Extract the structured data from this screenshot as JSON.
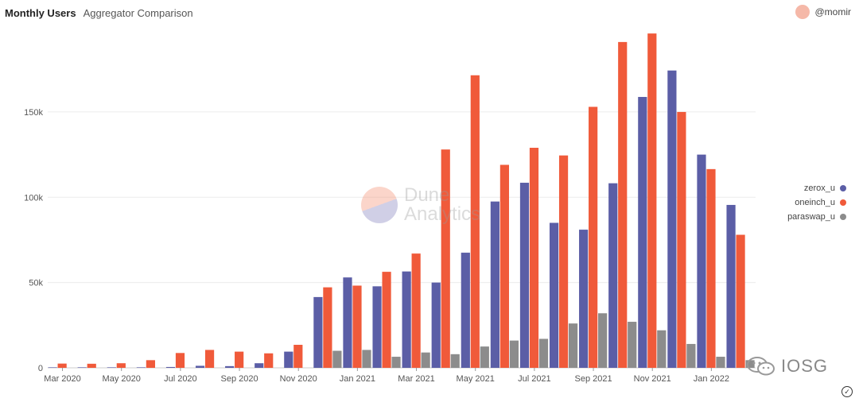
{
  "header": {
    "title": "Monthly Users",
    "subtitle": "Aggregator Comparison"
  },
  "user": {
    "name": "@momir"
  },
  "watermark": {
    "line1": "Dune",
    "line2": "Analytics"
  },
  "brand": {
    "name": "IOSG"
  },
  "colors": {
    "zerox_u": "#5b5ea6",
    "oneinch_u": "#f05a3a",
    "paraswap_u": "#8c8c8c"
  },
  "chart_data": {
    "type": "bar",
    "categories": [
      "Mar 2020",
      "Apr 2020",
      "May 2020",
      "Jun 2020",
      "Jul 2020",
      "Aug 2020",
      "Sep 2020",
      "Oct 2020",
      "Nov 2020",
      "Dec 2020",
      "Jan 2021",
      "Feb 2021",
      "Mar 2021",
      "Apr 2021",
      "May 2021",
      "Jun 2021",
      "Jul 2021",
      "Aug 2021",
      "Sep 2021",
      "Oct 2021",
      "Nov 2021",
      "Dec 2021",
      "Jan 2022",
      "Feb 2022"
    ],
    "tick_labels": [
      "Mar 2020",
      "May 2020",
      "Jul 2020",
      "Sep 2020",
      "Nov 2020",
      "Jan 2021",
      "Mar 2021",
      "May 2021",
      "Jul 2021",
      "Sep 2021",
      "Nov 2021",
      "Jan 2022"
    ],
    "series": [
      {
        "name": "zerox_u",
        "values": [
          300,
          300,
          300,
          300,
          500,
          1200,
          1000,
          2700,
          9500,
          41500,
          53000,
          47800,
          56500,
          50000,
          67500,
          97500,
          108500,
          85000,
          81000,
          108200,
          158800,
          174300,
          125000,
          95500
        ]
      },
      {
        "name": "oneinch_u",
        "values": [
          2500,
          2400,
          2700,
          4500,
          8700,
          10500,
          9500,
          8500,
          13500,
          47200,
          48200,
          56300,
          67000,
          128000,
          171500,
          119000,
          129000,
          124500,
          153000,
          191000,
          196000,
          150000,
          116500,
          78000
        ]
      },
      {
        "name": "paraswap_u",
        "values": [
          0,
          0,
          0,
          0,
          0,
          0,
          0,
          0,
          0,
          10000,
          10500,
          6500,
          9000,
          8000,
          12500,
          16000,
          17000,
          26000,
          32000,
          27000,
          22000,
          14000,
          6500,
          4500
        ]
      }
    ],
    "yticks": [
      0,
      50000,
      100000,
      150000
    ],
    "ytick_labels": [
      "0",
      "50k",
      "100k",
      "150k"
    ],
    "ylim": [
      0,
      197000
    ],
    "grid": true,
    "legend": "right"
  }
}
